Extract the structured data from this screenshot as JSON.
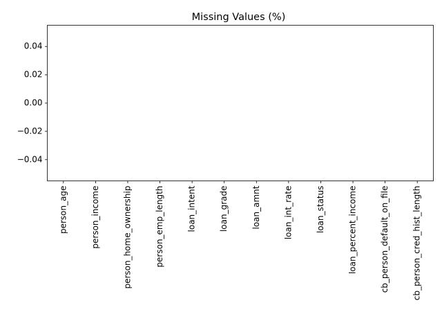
{
  "chart_data": {
    "type": "bar",
    "title": "Missing Values (%)",
    "xlabel": "",
    "ylabel": "",
    "categories": [
      "person_age",
      "person_income",
      "person_home_ownership",
      "person_emp_length",
      "loan_intent",
      "loan_grade",
      "loan_amnt",
      "loan_int_rate",
      "loan_status",
      "loan_percent_income",
      "cb_person_default_on_file",
      "cb_person_cred_hist_length"
    ],
    "values": [
      0,
      0,
      0,
      0,
      0,
      0,
      0,
      0,
      0,
      0,
      0,
      0
    ],
    "ylim": [
      -0.055,
      0.055
    ],
    "yticks": [
      -0.04,
      -0.02,
      0.0,
      0.02,
      0.04
    ],
    "ytick_labels": [
      "−0.04",
      "−0.02",
      "0.00",
      "0.02",
      "0.04"
    ],
    "grid": false,
    "legend": "none",
    "bar_color": "#1f77b4"
  }
}
